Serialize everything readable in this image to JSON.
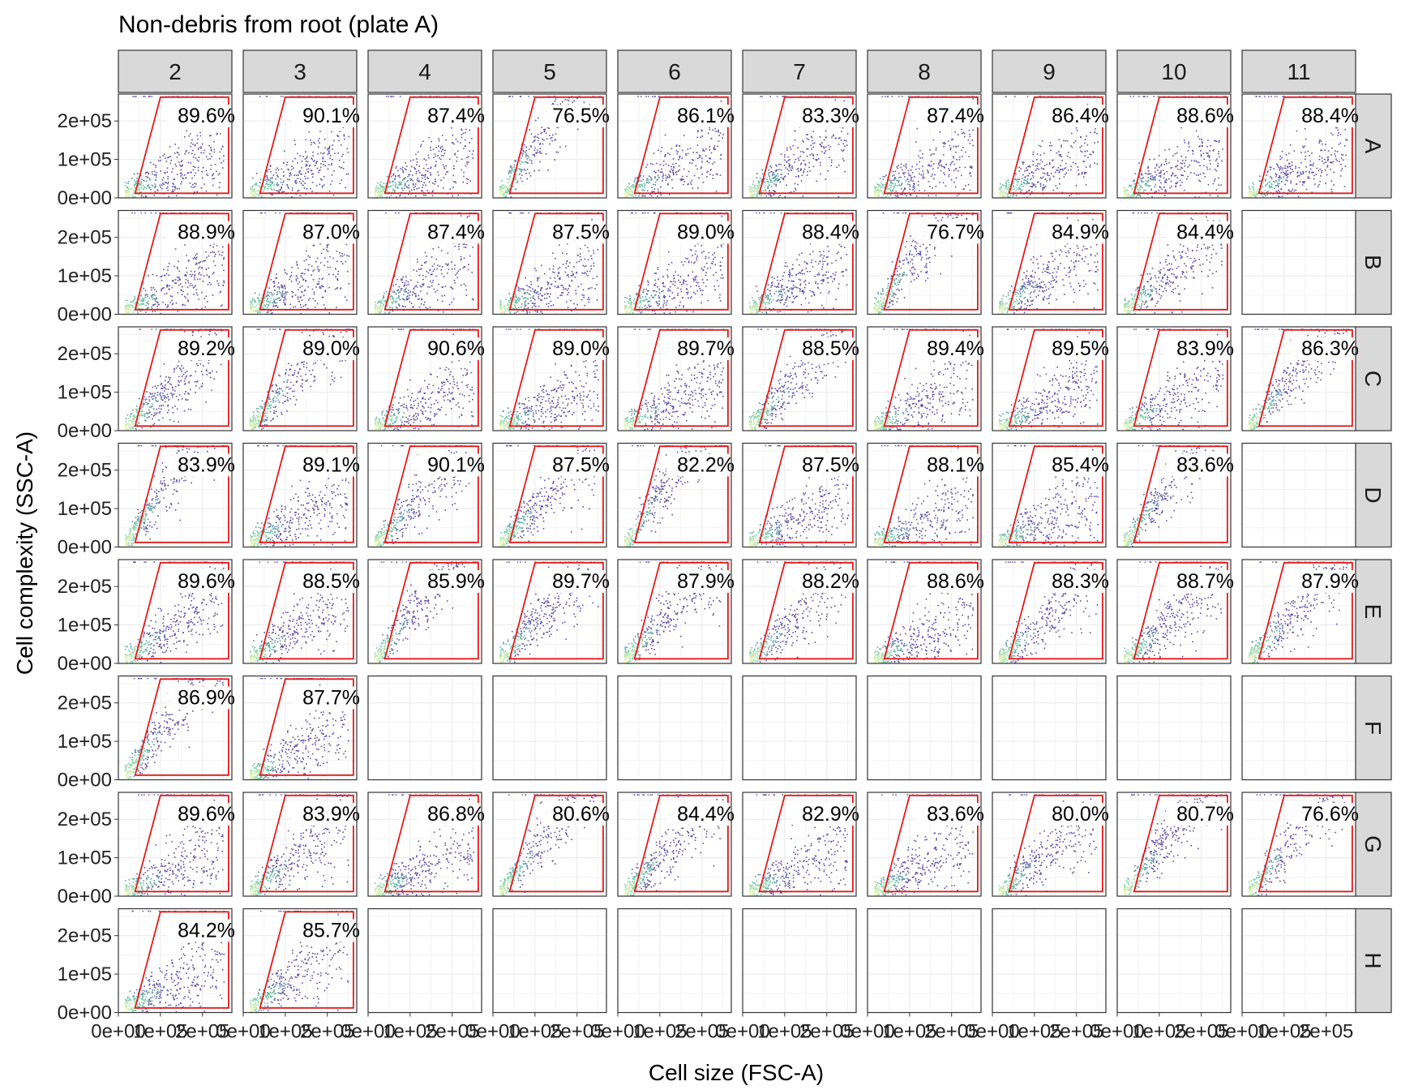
{
  "title": "Non-debris from root (plate A)",
  "xlabel": "Cell size (FSC-A)",
  "ylabel": "Cell complexity (SSC-A)",
  "colors": {
    "gate": "#e31a1c",
    "strip_fill": "#d9d9d9",
    "panel_border": "#333333",
    "grid": "#ebebeb",
    "density_low": "#5e4fa2",
    "density_mid": "#66c2a5",
    "density_high": "#ffffbf"
  },
  "chart_data": {
    "type": "scatter",
    "facet_cols": [
      "2",
      "3",
      "4",
      "5",
      "6",
      "7",
      "8",
      "9",
      "10",
      "11"
    ],
    "facet_rows": [
      "A",
      "B",
      "C",
      "D",
      "E",
      "F",
      "G",
      "H"
    ],
    "x_ticks": [
      "0e+00",
      "1e+05",
      "2e+05"
    ],
    "y_ticks": [
      "0e+00",
      "1e+05",
      "2e+05"
    ],
    "xlim": [
      0,
      270000
    ],
    "ylim": [
      0,
      270000
    ],
    "gate_polygon": [
      [
        40000,
        12000
      ],
      [
        100000,
        262000
      ],
      [
        262000,
        262000
      ],
      [
        262000,
        12000
      ]
    ],
    "wells": [
      {
        "row": "A",
        "col": "2",
        "pct": "89.6%",
        "slope": 0.55
      },
      {
        "row": "A",
        "col": "3",
        "pct": "90.1%",
        "slope": 0.55
      },
      {
        "row": "A",
        "col": "4",
        "pct": "87.4%",
        "slope": 0.5
      },
      {
        "row": "A",
        "col": "5",
        "pct": "76.5%",
        "slope": 1.7
      },
      {
        "row": "A",
        "col": "6",
        "pct": "86.1%",
        "slope": 0.6
      },
      {
        "row": "A",
        "col": "7",
        "pct": "83.3%",
        "slope": 0.8
      },
      {
        "row": "A",
        "col": "8",
        "pct": "87.4%",
        "slope": 0.55
      },
      {
        "row": "A",
        "col": "9",
        "pct": "86.4%",
        "slope": 0.6
      },
      {
        "row": "A",
        "col": "10",
        "pct": "88.6%",
        "slope": 0.55
      },
      {
        "row": "A",
        "col": "11",
        "pct": "88.4%",
        "slope": 0.55
      },
      {
        "row": "B",
        "col": "2",
        "pct": "88.9%",
        "slope": 0.6
      },
      {
        "row": "B",
        "col": "3",
        "pct": "87.0%",
        "slope": 0.7
      },
      {
        "row": "B",
        "col": "4",
        "pct": "87.4%",
        "slope": 0.7
      },
      {
        "row": "B",
        "col": "5",
        "pct": "87.5%",
        "slope": 0.6
      },
      {
        "row": "B",
        "col": "6",
        "pct": "89.0%",
        "slope": 0.6
      },
      {
        "row": "B",
        "col": "7",
        "pct": "88.4%",
        "slope": 0.7
      },
      {
        "row": "B",
        "col": "8",
        "pct": "76.7%",
        "slope": 1.6
      },
      {
        "row": "B",
        "col": "9",
        "pct": "84.9%",
        "slope": 0.9
      },
      {
        "row": "B",
        "col": "10",
        "pct": "84.4%",
        "slope": 1.0
      },
      {
        "row": "C",
        "col": "2",
        "pct": "89.2%",
        "slope": 1.1
      },
      {
        "row": "C",
        "col": "3",
        "pct": "89.0%",
        "slope": 1.4
      },
      {
        "row": "C",
        "col": "4",
        "pct": "90.6%",
        "slope": 0.55
      },
      {
        "row": "C",
        "col": "5",
        "pct": "89.0%",
        "slope": 0.55
      },
      {
        "row": "C",
        "col": "6",
        "pct": "89.7%",
        "slope": 0.7
      },
      {
        "row": "C",
        "col": "7",
        "pct": "88.5%",
        "slope": 1.3
      },
      {
        "row": "C",
        "col": "8",
        "pct": "89.4%",
        "slope": 0.6
      },
      {
        "row": "C",
        "col": "9",
        "pct": "89.5%",
        "slope": 0.6
      },
      {
        "row": "C",
        "col": "10",
        "pct": "83.9%",
        "slope": 0.7
      },
      {
        "row": "C",
        "col": "11",
        "pct": "86.3%",
        "slope": 1.4
      },
      {
        "row": "D",
        "col": "2",
        "pct": "83.9%",
        "slope": 1.7
      },
      {
        "row": "D",
        "col": "3",
        "pct": "89.1%",
        "slope": 0.7
      },
      {
        "row": "D",
        "col": "4",
        "pct": "90.1%",
        "slope": 1.2
      },
      {
        "row": "D",
        "col": "5",
        "pct": "87.5%",
        "slope": 1.2
      },
      {
        "row": "D",
        "col": "6",
        "pct": "82.2%",
        "slope": 1.7
      },
      {
        "row": "D",
        "col": "7",
        "pct": "87.5%",
        "slope": 0.6
      },
      {
        "row": "D",
        "col": "8",
        "pct": "88.1%",
        "slope": 0.55
      },
      {
        "row": "D",
        "col": "9",
        "pct": "85.4%",
        "slope": 0.6
      },
      {
        "row": "D",
        "col": "10",
        "pct": "83.6%",
        "slope": 1.6
      },
      {
        "row": "E",
        "col": "2",
        "pct": "89.6%",
        "slope": 0.9
      },
      {
        "row": "E",
        "col": "3",
        "pct": "88.5%",
        "slope": 0.8
      },
      {
        "row": "E",
        "col": "4",
        "pct": "85.9%",
        "slope": 1.6
      },
      {
        "row": "E",
        "col": "5",
        "pct": "89.7%",
        "slope": 1.3
      },
      {
        "row": "E",
        "col": "6",
        "pct": "87.9%",
        "slope": 1.3
      },
      {
        "row": "E",
        "col": "7",
        "pct": "88.2%",
        "slope": 1.1
      },
      {
        "row": "E",
        "col": "8",
        "pct": "88.6%",
        "slope": 0.6
      },
      {
        "row": "E",
        "col": "9",
        "pct": "88.3%",
        "slope": 1.1
      },
      {
        "row": "E",
        "col": "10",
        "pct": "88.7%",
        "slope": 1.0
      },
      {
        "row": "E",
        "col": "11",
        "pct": "87.9%",
        "slope": 1.3
      },
      {
        "row": "F",
        "col": "2",
        "pct": "86.9%",
        "slope": 1.6
      },
      {
        "row": "F",
        "col": "3",
        "pct": "87.7%",
        "slope": 0.7
      },
      {
        "row": "G",
        "col": "2",
        "pct": "89.6%",
        "slope": 0.55
      },
      {
        "row": "G",
        "col": "3",
        "pct": "83.9%",
        "slope": 0.9
      },
      {
        "row": "G",
        "col": "4",
        "pct": "86.8%",
        "slope": 0.6
      },
      {
        "row": "G",
        "col": "5",
        "pct": "80.6%",
        "slope": 1.5
      },
      {
        "row": "G",
        "col": "6",
        "pct": "84.4%",
        "slope": 1.2
      },
      {
        "row": "G",
        "col": "7",
        "pct": "82.9%",
        "slope": 0.6
      },
      {
        "row": "G",
        "col": "8",
        "pct": "83.6%",
        "slope": 0.7
      },
      {
        "row": "G",
        "col": "9",
        "pct": "80.0%",
        "slope": 1.0
      },
      {
        "row": "G",
        "col": "10",
        "pct": "80.7%",
        "slope": 1.5
      },
      {
        "row": "G",
        "col": "11",
        "pct": "76.6%",
        "slope": 1.5
      },
      {
        "row": "H",
        "col": "2",
        "pct": "84.2%",
        "slope": 0.7
      },
      {
        "row": "H",
        "col": "3",
        "pct": "85.7%",
        "slope": 0.9
      }
    ]
  }
}
